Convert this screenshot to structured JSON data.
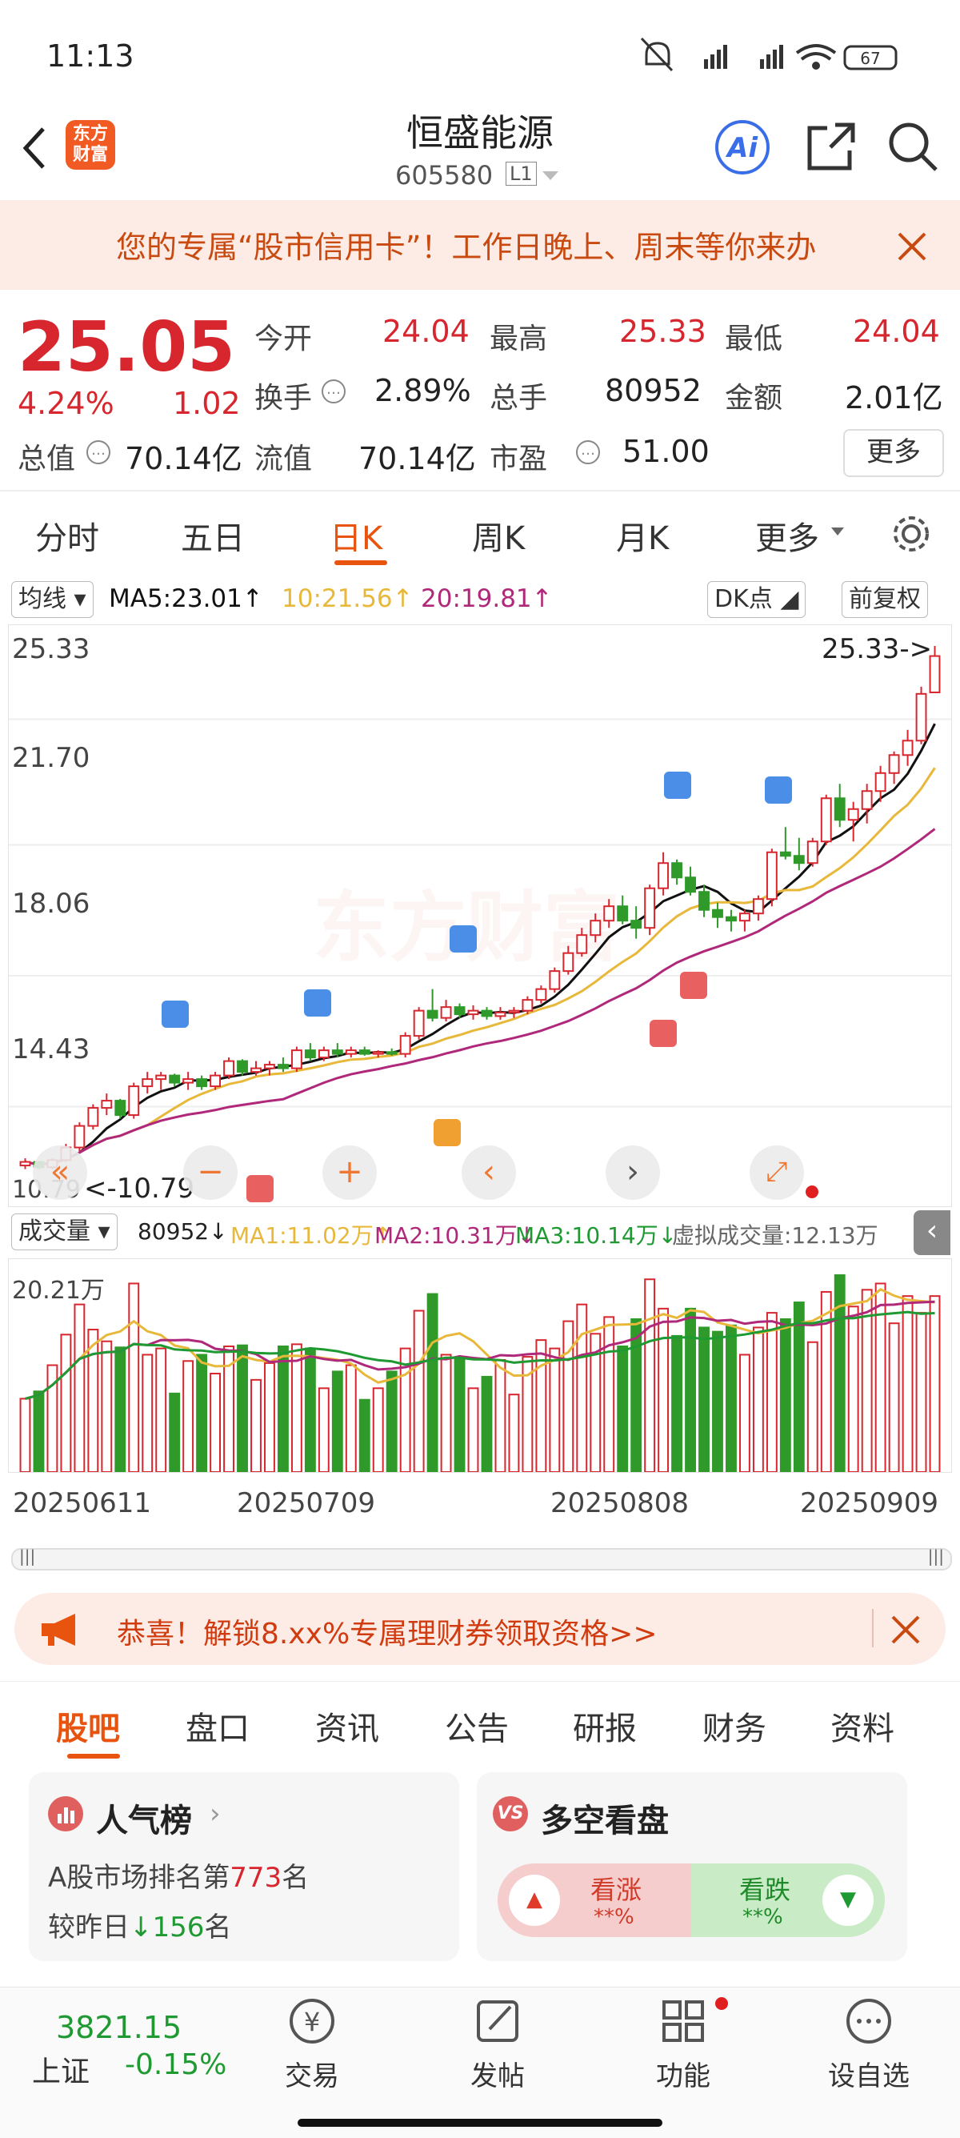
{
  "status": {
    "time": "11:13",
    "battery": "67"
  },
  "header": {
    "back_icon": "chevron-left-icon",
    "logo_text": "东方\n财富",
    "title": "恒盛能源",
    "code": "605580",
    "level": "L1",
    "ai_label": "Ai"
  },
  "promo_banner": {
    "text": "您的专属“股市信用卡”！工作日晚上、周末等你来办"
  },
  "quote": {
    "price": "25.05",
    "change_pct": "4.24%",
    "change": "1.02",
    "fields": [
      {
        "label": "今开",
        "value": "24.04"
      },
      {
        "label": "最高",
        "value": "25.33"
      },
      {
        "label": "最低",
        "value": "24.04"
      },
      {
        "label": "换手",
        "value": "2.89%"
      },
      {
        "label": "总手",
        "value": "80952"
      },
      {
        "label": "金额",
        "value": "2.01亿"
      },
      {
        "label": "总值",
        "value": "70.14亿"
      },
      {
        "label": "流值",
        "value": "70.14亿"
      },
      {
        "label": "市盈",
        "value": "51.00"
      }
    ],
    "more_label": "更多"
  },
  "tabs": [
    "分时",
    "五日",
    "日K",
    "周K",
    "月K",
    "更多"
  ],
  "active_tab": "日K",
  "ma_bar": {
    "selector": "均线",
    "ma5": "MA5:23.01↑",
    "ma10": "10:21.56↑",
    "ma20": "20:19.81↑",
    "dk": "DK点",
    "fq": "前复权"
  },
  "price_axis": [
    "25.33",
    "21.70",
    "18.06",
    "14.43",
    "10.79"
  ],
  "max_label": "25.33->",
  "min_label": "<-10.79",
  "watermark": "东方财富",
  "volume_bar": {
    "selector": "成交量",
    "vol": "80952↓",
    "ma1": "MA1:11.02万↑",
    "ma2": "MA2:10.31万↓",
    "ma3": "MA3:10.14万↓",
    "virtual": "虚拟成交量:12.13万",
    "axis": "20.21万"
  },
  "dates": [
    "20250611",
    "20250709",
    "20250808",
    "20250909"
  ],
  "signals": {
    "s": "S",
    "b": "B",
    "t": "T"
  },
  "colors": {
    "up": "#d7262e",
    "down": "#2f9a2a",
    "ma5": "#111111",
    "ma10": "#e8b83a",
    "ma20": "#b0287a"
  },
  "chart_data": {
    "type": "candlestick",
    "ylim": [
      10.79,
      25.33
    ],
    "ohlc": [
      [
        10.9,
        11.1,
        10.8,
        11.0
      ],
      [
        11.0,
        11.0,
        10.79,
        10.85
      ],
      [
        10.85,
        11.1,
        10.8,
        11.05
      ],
      [
        11.05,
        11.5,
        11.0,
        11.4
      ],
      [
        11.4,
        12.1,
        11.3,
        12.0
      ],
      [
        12.0,
        12.6,
        11.9,
        12.5
      ],
      [
        12.5,
        12.9,
        12.3,
        12.7
      ],
      [
        12.7,
        12.75,
        12.2,
        12.3
      ],
      [
        12.3,
        13.2,
        12.2,
        13.1
      ],
      [
        13.1,
        13.5,
        12.9,
        13.3
      ],
      [
        13.3,
        13.5,
        13.0,
        13.4
      ],
      [
        13.4,
        13.45,
        13.1,
        13.2
      ],
      [
        13.2,
        13.5,
        13.0,
        13.3
      ],
      [
        13.3,
        13.4,
        13.0,
        13.1
      ],
      [
        13.1,
        13.5,
        13.0,
        13.4
      ],
      [
        13.4,
        13.9,
        13.3,
        13.8
      ],
      [
        13.8,
        13.85,
        13.4,
        13.5
      ],
      [
        13.5,
        13.8,
        13.4,
        13.6
      ],
      [
        13.6,
        13.8,
        13.4,
        13.7
      ],
      [
        13.7,
        13.9,
        13.5,
        13.6
      ],
      [
        13.6,
        14.2,
        13.5,
        14.1
      ],
      [
        14.1,
        14.3,
        13.8,
        13.9
      ],
      [
        13.9,
        14.2,
        13.8,
        14.1
      ],
      [
        14.1,
        14.3,
        13.9,
        14.0
      ],
      [
        14.0,
        14.2,
        13.9,
        14.1
      ],
      [
        14.1,
        14.2,
        13.95,
        14.0
      ],
      [
        14.0,
        14.1,
        13.9,
        14.05
      ],
      [
        14.05,
        14.15,
        13.95,
        14.0
      ],
      [
        14.0,
        14.6,
        13.9,
        14.5
      ],
      [
        14.5,
        15.3,
        14.4,
        15.2
      ],
      [
        15.2,
        15.8,
        14.9,
        15.0
      ],
      [
        15.0,
        15.5,
        14.9,
        15.3
      ],
      [
        15.3,
        15.4,
        15.0,
        15.1
      ],
      [
        15.1,
        15.35,
        14.95,
        15.2
      ],
      [
        15.2,
        15.3,
        14.95,
        15.05
      ],
      [
        15.05,
        15.3,
        14.95,
        15.15
      ],
      [
        15.15,
        15.3,
        15.0,
        15.2
      ],
      [
        15.2,
        15.6,
        15.1,
        15.5
      ],
      [
        15.5,
        15.9,
        15.4,
        15.8
      ],
      [
        15.8,
        16.4,
        15.7,
        16.3
      ],
      [
        16.3,
        17.0,
        16.2,
        16.8
      ],
      [
        16.8,
        17.5,
        16.7,
        17.3
      ],
      [
        17.3,
        17.9,
        17.1,
        17.7
      ],
      [
        17.7,
        18.3,
        17.5,
        18.1
      ],
      [
        18.1,
        18.4,
        17.6,
        17.7
      ],
      [
        17.7,
        18.1,
        17.2,
        17.5
      ],
      [
        17.5,
        18.7,
        17.3,
        18.6
      ],
      [
        18.6,
        19.6,
        18.4,
        19.3
      ],
      [
        19.3,
        19.4,
        18.7,
        18.9
      ],
      [
        18.9,
        19.2,
        18.4,
        18.5
      ],
      [
        18.5,
        18.7,
        17.8,
        18.0
      ],
      [
        18.0,
        18.2,
        17.5,
        17.8
      ],
      [
        17.8,
        18.0,
        17.4,
        17.7
      ],
      [
        17.7,
        18.0,
        17.4,
        17.9
      ],
      [
        17.9,
        18.4,
        17.7,
        18.3
      ],
      [
        18.3,
        19.7,
        18.1,
        19.6
      ],
      [
        19.6,
        20.3,
        19.4,
        19.5
      ],
      [
        19.5,
        20.0,
        19.1,
        19.3
      ],
      [
        19.3,
        20.0,
        19.2,
        19.9
      ],
      [
        19.9,
        21.2,
        19.8,
        21.1
      ],
      [
        21.1,
        21.5,
        20.3,
        20.5
      ],
      [
        20.5,
        21.0,
        19.9,
        20.8
      ],
      [
        20.8,
        21.5,
        20.4,
        21.3
      ],
      [
        21.3,
        22.0,
        21.0,
        21.8
      ],
      [
        21.8,
        22.4,
        21.5,
        22.3
      ],
      [
        22.3,
        23.0,
        22.0,
        22.7
      ],
      [
        22.7,
        24.2,
        22.6,
        24.0
      ],
      [
        24.04,
        25.33,
        24.04,
        25.05
      ]
    ],
    "volume_max": "20.21万"
  },
  "promo2": {
    "text": "恭喜！解锁8.xx%专属理财券领取资格>>"
  },
  "section_tabs": [
    "股吧",
    "盘口",
    "资讯",
    "公告",
    "研报",
    "财务",
    "资料"
  ],
  "active_section": "股吧",
  "rank_card": {
    "title": "人气榜",
    "line1_prefix": "A股市场排名第",
    "rank": "773",
    "line1_suffix": "名",
    "line2_prefix": "较昨日",
    "delta": "156",
    "line2_suffix": "名"
  },
  "vote_card": {
    "title": "多空看盘",
    "up": "看涨",
    "down": "看跌",
    "up_val": "**%",
    "down_val": "**%"
  },
  "bottom_nav": {
    "index_value": "3821.15",
    "index_name": "上证",
    "index_change": "-0.15%",
    "trade": "交易",
    "post": "发帖",
    "features": "功能",
    "add": "设自选"
  }
}
